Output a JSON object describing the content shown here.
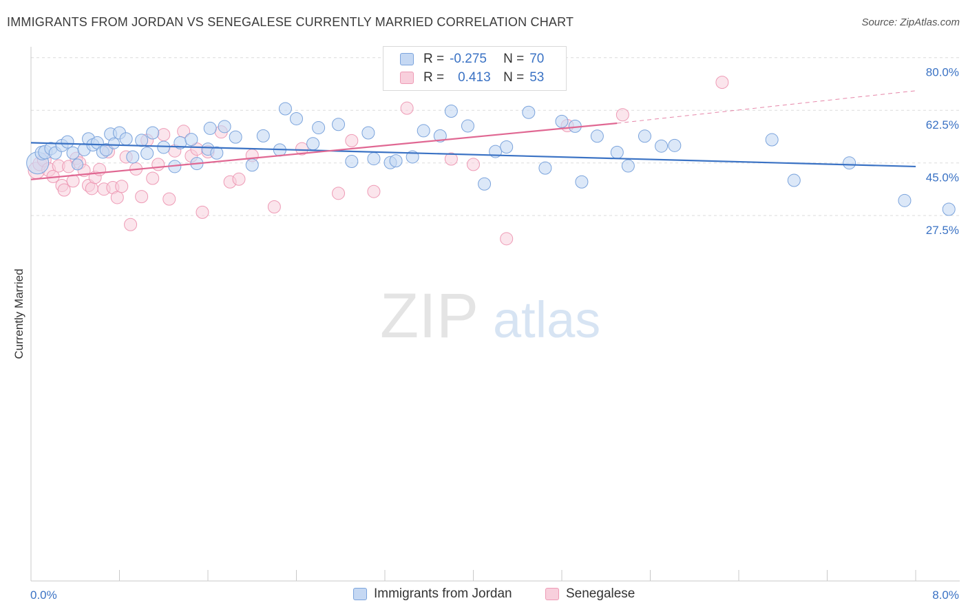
{
  "header": {
    "title": "IMMIGRANTS FROM JORDAN VS SENEGALESE CURRENTLY MARRIED CORRELATION CHART",
    "source": "Source: ZipAtlas.com"
  },
  "watermark": {
    "zip": "ZIP",
    "atlas": "atlas"
  },
  "colors": {
    "blue": "#3a72c4",
    "blue_fill": "#c5d8f3",
    "blue_stroke": "#7aa3dc",
    "pink": "#e06792",
    "pink_fill": "#f8cfdc",
    "pink_stroke": "#ee9ab5",
    "grid": "#dcdcdc"
  },
  "legend_top": {
    "rows": [
      {
        "r_label": "R =",
        "r_value": "-0.275",
        "n_label": "N =",
        "n_value": "70"
      },
      {
        "r_label": "R =",
        "r_value": "0.413",
        "n_label": "N =",
        "n_value": "53"
      }
    ]
  },
  "chart_data": {
    "type": "scatter",
    "title": "IMMIGRANTS FROM JORDAN VS SENEGALESE CURRENTLY MARRIED CORRELATION CHART",
    "xlabel": "",
    "ylabel": "Currently Married",
    "xlim": [
      0,
      8
    ],
    "ylim": [
      10,
      82
    ],
    "x_tick_labels": [
      "0.0%",
      "8.0%"
    ],
    "y_ticks": [
      27.5,
      45.0,
      62.5,
      80.0
    ],
    "y_tick_labels": [
      "27.5%",
      "45.0%",
      "62.5%",
      "80.0%"
    ],
    "grid": true,
    "legend_position": "bottom",
    "series": [
      {
        "name": "Immigrants from Jordan",
        "color": "#3a72c4",
        "trend": {
          "x": [
            0.0,
            8.0
          ],
          "y": [
            51.7,
            43.8
          ]
        },
        "points": [
          [
            0.06,
            45.0,
            16
          ],
          [
            0.1,
            48.3,
            10
          ],
          [
            0.13,
            48.6,
            10
          ],
          [
            0.18,
            49.8,
            9
          ],
          [
            0.22,
            48.3,
            9
          ],
          [
            0.28,
            50.8,
            9
          ],
          [
            0.33,
            52.0,
            9
          ],
          [
            0.38,
            48.3,
            9
          ],
          [
            0.42,
            44.5,
            8
          ],
          [
            0.48,
            49.4,
            9
          ],
          [
            0.52,
            53.0,
            9
          ],
          [
            0.56,
            51.0,
            9
          ],
          [
            0.6,
            51.7,
            9
          ],
          [
            0.65,
            48.6,
            9
          ],
          [
            0.68,
            49.4,
            9
          ],
          [
            0.72,
            54.6,
            9
          ],
          [
            0.75,
            51.5,
            8
          ],
          [
            0.8,
            55.0,
            9
          ],
          [
            0.86,
            53.0,
            9
          ],
          [
            0.92,
            47.0,
            9
          ],
          [
            1.0,
            52.5,
            9
          ],
          [
            1.05,
            48.2,
            9
          ],
          [
            1.1,
            55.0,
            9
          ],
          [
            1.2,
            50.2,
            9
          ],
          [
            1.3,
            43.8,
            9
          ],
          [
            1.35,
            51.7,
            9
          ],
          [
            1.45,
            52.8,
            9
          ],
          [
            1.5,
            44.8,
            9
          ],
          [
            1.6,
            49.6,
            9
          ],
          [
            1.62,
            56.5,
            9
          ],
          [
            1.68,
            48.3,
            9
          ],
          [
            1.75,
            57.1,
            9
          ],
          [
            1.85,
            53.6,
            9
          ],
          [
            2.0,
            44.3,
            9
          ],
          [
            2.1,
            54.0,
            9
          ],
          [
            2.25,
            49.3,
            9
          ],
          [
            2.3,
            63.0,
            9
          ],
          [
            2.4,
            59.7,
            9
          ],
          [
            2.55,
            51.4,
            9
          ],
          [
            2.6,
            56.7,
            9
          ],
          [
            2.78,
            57.8,
            9
          ],
          [
            2.9,
            45.5,
            9
          ],
          [
            3.05,
            55.0,
            9
          ],
          [
            3.1,
            46.4,
            9
          ],
          [
            3.25,
            45.1,
            9
          ],
          [
            3.3,
            45.7,
            9
          ],
          [
            3.45,
            47.0,
            9
          ],
          [
            3.55,
            55.7,
            9
          ],
          [
            3.7,
            54.0,
            9
          ],
          [
            3.8,
            62.2,
            9
          ],
          [
            3.95,
            57.3,
            9
          ],
          [
            4.2,
            48.8,
            9
          ],
          [
            4.3,
            50.3,
            9
          ],
          [
            4.5,
            61.8,
            9
          ],
          [
            4.65,
            43.3,
            9
          ],
          [
            4.8,
            58.8,
            9
          ],
          [
            4.92,
            57.2,
            9
          ],
          [
            4.98,
            38.7,
            9
          ],
          [
            5.12,
            53.9,
            9
          ],
          [
            5.3,
            48.5,
            9
          ],
          [
            5.55,
            53.9,
            9
          ],
          [
            5.7,
            50.6,
            9
          ],
          [
            5.82,
            50.8,
            9
          ],
          [
            6.7,
            52.7,
            9
          ],
          [
            6.9,
            39.2,
            9
          ],
          [
            7.4,
            45.0,
            9
          ],
          [
            7.9,
            32.5,
            9
          ],
          [
            8.3,
            29.6,
            9
          ],
          [
            5.4,
            44.0,
            9
          ],
          [
            4.1,
            38.0,
            9
          ]
        ]
      },
      {
        "name": "Senegalese",
        "color": "#e06792",
        "trend": {
          "x": [
            0.0,
            5.3
          ],
          "y": [
            39.5,
            58.2
          ]
        },
        "trend_extension": {
          "x": [
            5.3,
            8.0
          ],
          "y": [
            58.2,
            69.0
          ]
        },
        "points": [
          [
            0.05,
            42.5,
            12
          ],
          [
            0.08,
            44.7,
            10
          ],
          [
            0.12,
            46.0,
            10
          ],
          [
            0.16,
            42.8,
            10
          ],
          [
            0.2,
            40.5,
            9
          ],
          [
            0.25,
            44.0,
            9
          ],
          [
            0.28,
            37.5,
            9
          ],
          [
            0.3,
            36.0,
            9
          ],
          [
            0.34,
            43.8,
            9
          ],
          [
            0.38,
            39.0,
            9
          ],
          [
            0.41,
            46.5,
            9
          ],
          [
            0.44,
            45.0,
            9
          ],
          [
            0.48,
            42.5,
            9
          ],
          [
            0.52,
            37.5,
            9
          ],
          [
            0.55,
            36.5,
            9
          ],
          [
            0.58,
            40.2,
            9
          ],
          [
            0.62,
            42.8,
            9
          ],
          [
            0.66,
            36.3,
            9
          ],
          [
            0.7,
            48.7,
            9
          ],
          [
            0.74,
            36.8,
            9
          ],
          [
            0.78,
            33.5,
            9
          ],
          [
            0.82,
            37.2,
            9
          ],
          [
            0.86,
            47.0,
            9
          ],
          [
            0.9,
            24.5,
            9
          ],
          [
            0.95,
            43.0,
            9
          ],
          [
            1.0,
            33.8,
            9
          ],
          [
            1.05,
            52.5,
            9
          ],
          [
            1.1,
            39.9,
            9
          ],
          [
            1.15,
            44.5,
            9
          ],
          [
            1.2,
            54.4,
            9
          ],
          [
            1.25,
            33.0,
            9
          ],
          [
            1.3,
            49.0,
            9
          ],
          [
            1.38,
            55.5,
            9
          ],
          [
            1.45,
            47.3,
            9
          ],
          [
            1.5,
            49.6,
            9
          ],
          [
            1.55,
            28.6,
            9
          ],
          [
            1.6,
            48.7,
            9
          ],
          [
            1.72,
            55.3,
            9
          ],
          [
            1.8,
            38.7,
            9
          ],
          [
            1.88,
            39.6,
            9
          ],
          [
            2.0,
            47.5,
            9
          ],
          [
            2.2,
            30.4,
            9
          ],
          [
            2.45,
            49.7,
            9
          ],
          [
            2.78,
            34.9,
            9
          ],
          [
            2.9,
            52.4,
            9
          ],
          [
            3.1,
            35.5,
            9
          ],
          [
            3.4,
            63.2,
            9
          ],
          [
            3.8,
            46.3,
            9
          ],
          [
            4.0,
            44.5,
            9
          ],
          [
            4.3,
            19.8,
            9
          ],
          [
            4.85,
            57.4,
            9
          ],
          [
            5.35,
            61.0,
            9
          ],
          [
            6.25,
            71.8,
            9
          ]
        ]
      }
    ]
  }
}
